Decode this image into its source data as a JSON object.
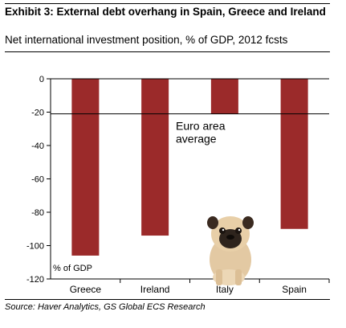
{
  "header": {
    "title": "Exhibit 3: External debt overhang in Spain, Greece and Ireland",
    "subtitle": "Net international investment position, % of GDP, 2012 fcsts"
  },
  "footer": {
    "source": "Source: Haver Analytics, GS Global ECS Research"
  },
  "colors": {
    "bar": "#9b2a2a",
    "axis": "#000000"
  },
  "chart_data": {
    "type": "bar",
    "categories": [
      "Greece",
      "Ireland",
      "Italy",
      "Spain"
    ],
    "values": [
      -106,
      -94,
      -21,
      -90
    ],
    "ylim": [
      -120,
      0
    ],
    "yticks": [
      0,
      -20,
      -40,
      -60,
      -80,
      -100,
      -120
    ],
    "reference_line": {
      "value": -21,
      "label_line1": "Euro area",
      "label_line2": "average"
    },
    "annotation": "% of GDP",
    "grid": false,
    "legend": "none"
  },
  "decor": {
    "image": "pug-dog-photo"
  }
}
